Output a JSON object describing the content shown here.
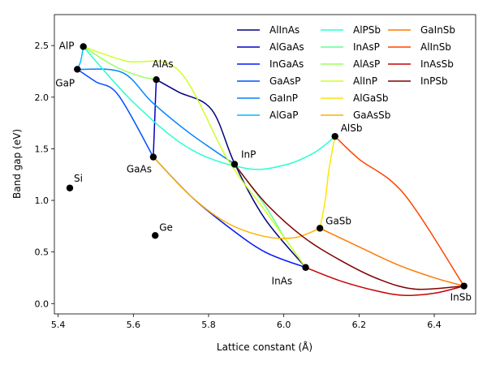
{
  "chart_data": {
    "type": "line",
    "title": "",
    "xlabel": "Lattice constant (Å)",
    "ylabel": "Band gap (eV)",
    "xlim": [
      5.39,
      6.51
    ],
    "ylim": [
      -0.1,
      2.8
    ],
    "xticks": [
      5.4,
      5.6,
      5.8,
      6.0,
      6.2,
      6.4
    ],
    "xtick_labels": [
      "5.4",
      "5.6",
      "5.8",
      "6.0",
      "6.2",
      "6.4"
    ],
    "yticks": [
      0.0,
      0.5,
      1.0,
      1.5,
      2.0,
      2.5
    ],
    "ytick_labels": [
      "0.0",
      "0.5",
      "1.0",
      "1.5",
      "2.0",
      "2.5"
    ],
    "grid": false,
    "legend_position": "top-right",
    "materials": [
      {
        "label": "AlP",
        "x": 5.467,
        "y": 2.49
      },
      {
        "label": "GaP",
        "x": 5.451,
        "y": 2.27
      },
      {
        "label": "AlAs",
        "x": 5.661,
        "y": 2.17
      },
      {
        "label": "GaAs",
        "x": 5.653,
        "y": 1.42
      },
      {
        "label": "InP",
        "x": 5.869,
        "y": 1.35
      },
      {
        "label": "AlSb",
        "x": 6.136,
        "y": 1.62
      },
      {
        "label": "GaSb",
        "x": 6.096,
        "y": 0.73
      },
      {
        "label": "InAs",
        "x": 6.058,
        "y": 0.35
      },
      {
        "label": "InSb",
        "x": 6.479,
        "y": 0.17
      },
      {
        "label": "Si",
        "x": 5.431,
        "y": 1.12
      },
      {
        "label": "Ge",
        "x": 5.658,
        "y": 0.66
      }
    ],
    "series": [
      {
        "name": "AlInAs",
        "color": "#00007f",
        "x": [
          5.661,
          5.72,
          5.808,
          5.87,
          5.95,
          6.058
        ],
        "y": [
          2.17,
          2.05,
          1.88,
          1.35,
          0.82,
          0.35
        ]
      },
      {
        "name": "AlGaAs",
        "color": "#0000c8",
        "x": [
          5.653,
          5.657,
          5.659,
          5.661
        ],
        "y": [
          1.42,
          1.8,
          2.0,
          2.17
        ]
      },
      {
        "name": "InGaAs",
        "color": "#0019ff",
        "x": [
          5.653,
          5.75,
          5.85,
          5.95,
          6.058
        ],
        "y": [
          1.42,
          1.05,
          0.75,
          0.5,
          0.35
        ]
      },
      {
        "name": "GaAsP",
        "color": "#0050ff",
        "x": [
          5.451,
          5.5,
          5.56,
          5.653
        ],
        "y": [
          2.27,
          2.15,
          2.02,
          1.42
        ]
      },
      {
        "name": "GaInP",
        "color": "#0084ff",
        "x": [
          5.451,
          5.57,
          5.65,
          5.75,
          5.869
        ],
        "y": [
          2.27,
          2.24,
          1.95,
          1.65,
          1.35
        ]
      },
      {
        "name": "AlGaP",
        "color": "#00bcff",
        "x": [
          5.451,
          5.46,
          5.467
        ],
        "y": [
          2.27,
          2.35,
          2.49
        ]
      },
      {
        "name": "AlPSb",
        "color": "#29ffce",
        "x": [
          5.467,
          5.6,
          5.75,
          5.9,
          6.0,
          6.08,
          6.136
        ],
        "y": [
          2.49,
          1.95,
          1.5,
          1.31,
          1.34,
          1.46,
          1.62
        ]
      },
      {
        "name": "InAsP",
        "color": "#60ff96",
        "x": [
          5.869,
          5.95,
          6.0,
          6.058
        ],
        "y": [
          1.35,
          0.95,
          0.65,
          0.35
        ]
      },
      {
        "name": "AlAsP",
        "color": "#9aff5d",
        "x": [
          5.467,
          5.55,
          5.62,
          5.661
        ],
        "y": [
          2.49,
          2.3,
          2.2,
          2.17
        ]
      },
      {
        "name": "AlInP",
        "color": "#ceff29",
        "x": [
          5.467,
          5.58,
          5.72,
          5.85,
          5.95,
          6.058
        ],
        "y": [
          2.49,
          2.35,
          2.26,
          1.4,
          0.9,
          0.35
        ]
      },
      {
        "name": "AlGaSb",
        "color": "#ffe600",
        "x": [
          6.096,
          6.11,
          6.12,
          6.136
        ],
        "y": [
          0.73,
          1.0,
          1.3,
          1.62
        ]
      },
      {
        "name": "GaAsSb",
        "color": "#ffb200",
        "x": [
          5.653,
          5.75,
          5.85,
          5.95,
          6.03,
          6.096
        ],
        "y": [
          1.42,
          1.05,
          0.78,
          0.65,
          0.64,
          0.73
        ]
      },
      {
        "name": "GaInSb",
        "color": "#ff7a00",
        "x": [
          6.096,
          6.2,
          6.3,
          6.4,
          6.479
        ],
        "y": [
          0.73,
          0.55,
          0.38,
          0.25,
          0.17
        ]
      },
      {
        "name": "AlInSb",
        "color": "#ff4400",
        "x": [
          6.136,
          6.2,
          6.32,
          6.479
        ],
        "y": [
          1.62,
          1.4,
          1.06,
          0.17
        ]
      },
      {
        "name": "InAsSb",
        "color": "#c80000",
        "x": [
          6.058,
          6.15,
          6.25,
          6.32,
          6.4,
          6.479
        ],
        "y": [
          0.35,
          0.22,
          0.12,
          0.08,
          0.1,
          0.17
        ]
      },
      {
        "name": "InPSb",
        "color": "#7f0000",
        "x": [
          5.869,
          5.95,
          6.05,
          6.15,
          6.25,
          6.35,
          6.479
        ],
        "y": [
          1.35,
          0.98,
          0.65,
          0.42,
          0.24,
          0.14,
          0.17
        ]
      }
    ]
  }
}
